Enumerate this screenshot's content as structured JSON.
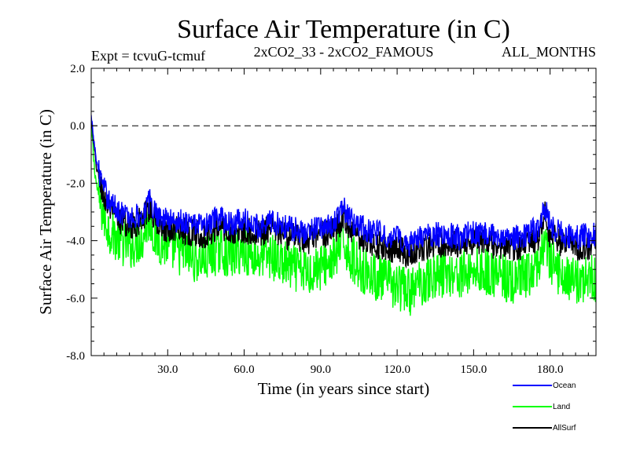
{
  "chart_data": {
    "type": "line",
    "title": "Surface Air Temperature (in C)",
    "subtitle_left": "Expt = tcvuG-tcmuf",
    "subtitle_center": "2xCO2_33 - 2xCO2_FAMOUS",
    "subtitle_right": "ALL_MONTHS",
    "xlabel": "Time (in years since start)",
    "ylabel": "Surface Air Temperature (in C)",
    "xlim": [
      0,
      198
    ],
    "ylim": [
      -8.0,
      2.0
    ],
    "x_ticks": [
      30,
      60,
      90,
      120,
      150,
      180
    ],
    "x_tick_labels": [
      "30.0",
      "60.0",
      "90.0",
      "120.0",
      "150.0",
      "180.0"
    ],
    "y_ticks": [
      2.0,
      0.0,
      -2.0,
      -4.0,
      -6.0,
      -8.0
    ],
    "y_tick_labels": [
      "2.0",
      "0.0",
      "-2.0",
      "-4.0",
      "-6.0",
      "-8.0"
    ],
    "reference_line": {
      "y": 0.0,
      "style": "dashed"
    },
    "legend_position": "bottom-right",
    "series": [
      {
        "name": "Ocean",
        "color": "#0000ff",
        "x": [
          0,
          1,
          2,
          3,
          5,
          7,
          10,
          15,
          20,
          23,
          25,
          30,
          35,
          40,
          45,
          50,
          55,
          60,
          65,
          70,
          75,
          80,
          85,
          90,
          95,
          99,
          102,
          105,
          110,
          115,
          120,
          125,
          130,
          135,
          140,
          145,
          150,
          155,
          160,
          165,
          170,
          175,
          178,
          180,
          185,
          190,
          195,
          198
        ],
        "values": [
          0.3,
          -0.5,
          -1.2,
          -1.6,
          -2.2,
          -2.6,
          -2.9,
          -3.2,
          -3.1,
          -2.6,
          -3.0,
          -3.3,
          -3.3,
          -3.4,
          -3.5,
          -3.2,
          -3.4,
          -3.3,
          -3.5,
          -3.3,
          -3.5,
          -3.6,
          -3.7,
          -3.5,
          -3.4,
          -2.9,
          -3.3,
          -3.5,
          -3.7,
          -3.8,
          -3.9,
          -4.1,
          -3.9,
          -3.8,
          -3.8,
          -3.9,
          -3.7,
          -3.8,
          -3.8,
          -3.9,
          -3.8,
          -3.6,
          -2.8,
          -3.5,
          -3.8,
          -3.9,
          -3.8,
          -3.8
        ]
      },
      {
        "name": "Land",
        "color": "#00ff00",
        "x": [
          0,
          1,
          2,
          3,
          5,
          7,
          10,
          15,
          20,
          23,
          25,
          30,
          35,
          40,
          45,
          50,
          55,
          60,
          65,
          70,
          75,
          80,
          85,
          90,
          95,
          99,
          102,
          105,
          110,
          115,
          120,
          125,
          130,
          135,
          140,
          145,
          150,
          155,
          160,
          165,
          170,
          175,
          178,
          180,
          185,
          190,
          195,
          198
        ],
        "values": [
          0.1,
          -1.2,
          -2.0,
          -2.5,
          -3.2,
          -3.6,
          -3.9,
          -4.2,
          -3.9,
          -3.2,
          -3.9,
          -4.2,
          -4.4,
          -4.6,
          -4.7,
          -4.3,
          -4.5,
          -4.3,
          -4.6,
          -4.5,
          -4.8,
          -5.0,
          -5.1,
          -4.9,
          -4.7,
          -4.0,
          -4.6,
          -4.9,
          -5.2,
          -5.4,
          -5.6,
          -5.8,
          -5.4,
          -5.2,
          -5.1,
          -5.2,
          -5.0,
          -5.1,
          -5.2,
          -5.5,
          -5.3,
          -5.0,
          -3.8,
          -4.8,
          -5.2,
          -5.4,
          -5.3,
          -5.3
        ]
      },
      {
        "name": "AllSurf",
        "color": "#000000",
        "x": [
          0,
          1,
          2,
          3,
          5,
          7,
          10,
          15,
          20,
          23,
          25,
          30,
          35,
          40,
          45,
          50,
          55,
          60,
          65,
          70,
          75,
          80,
          85,
          90,
          95,
          99,
          102,
          105,
          110,
          115,
          120,
          125,
          130,
          135,
          140,
          145,
          150,
          155,
          160,
          165,
          170,
          175,
          178,
          180,
          185,
          190,
          195,
          198
        ],
        "values": [
          0.2,
          -0.7,
          -1.4,
          -1.8,
          -2.5,
          -2.9,
          -3.2,
          -3.5,
          -3.3,
          -2.8,
          -3.3,
          -3.6,
          -3.6,
          -3.7,
          -3.8,
          -3.5,
          -3.7,
          -3.6,
          -3.8,
          -3.6,
          -3.8,
          -3.9,
          -4.0,
          -3.8,
          -3.7,
          -3.2,
          -3.6,
          -3.8,
          -4.1,
          -4.2,
          -4.3,
          -4.5,
          -4.3,
          -4.1,
          -4.1,
          -4.2,
          -4.0,
          -4.1,
          -4.2,
          -4.3,
          -4.2,
          -4.0,
          -3.1,
          -3.8,
          -4.1,
          -4.2,
          -4.2,
          -4.1
        ]
      }
    ]
  }
}
